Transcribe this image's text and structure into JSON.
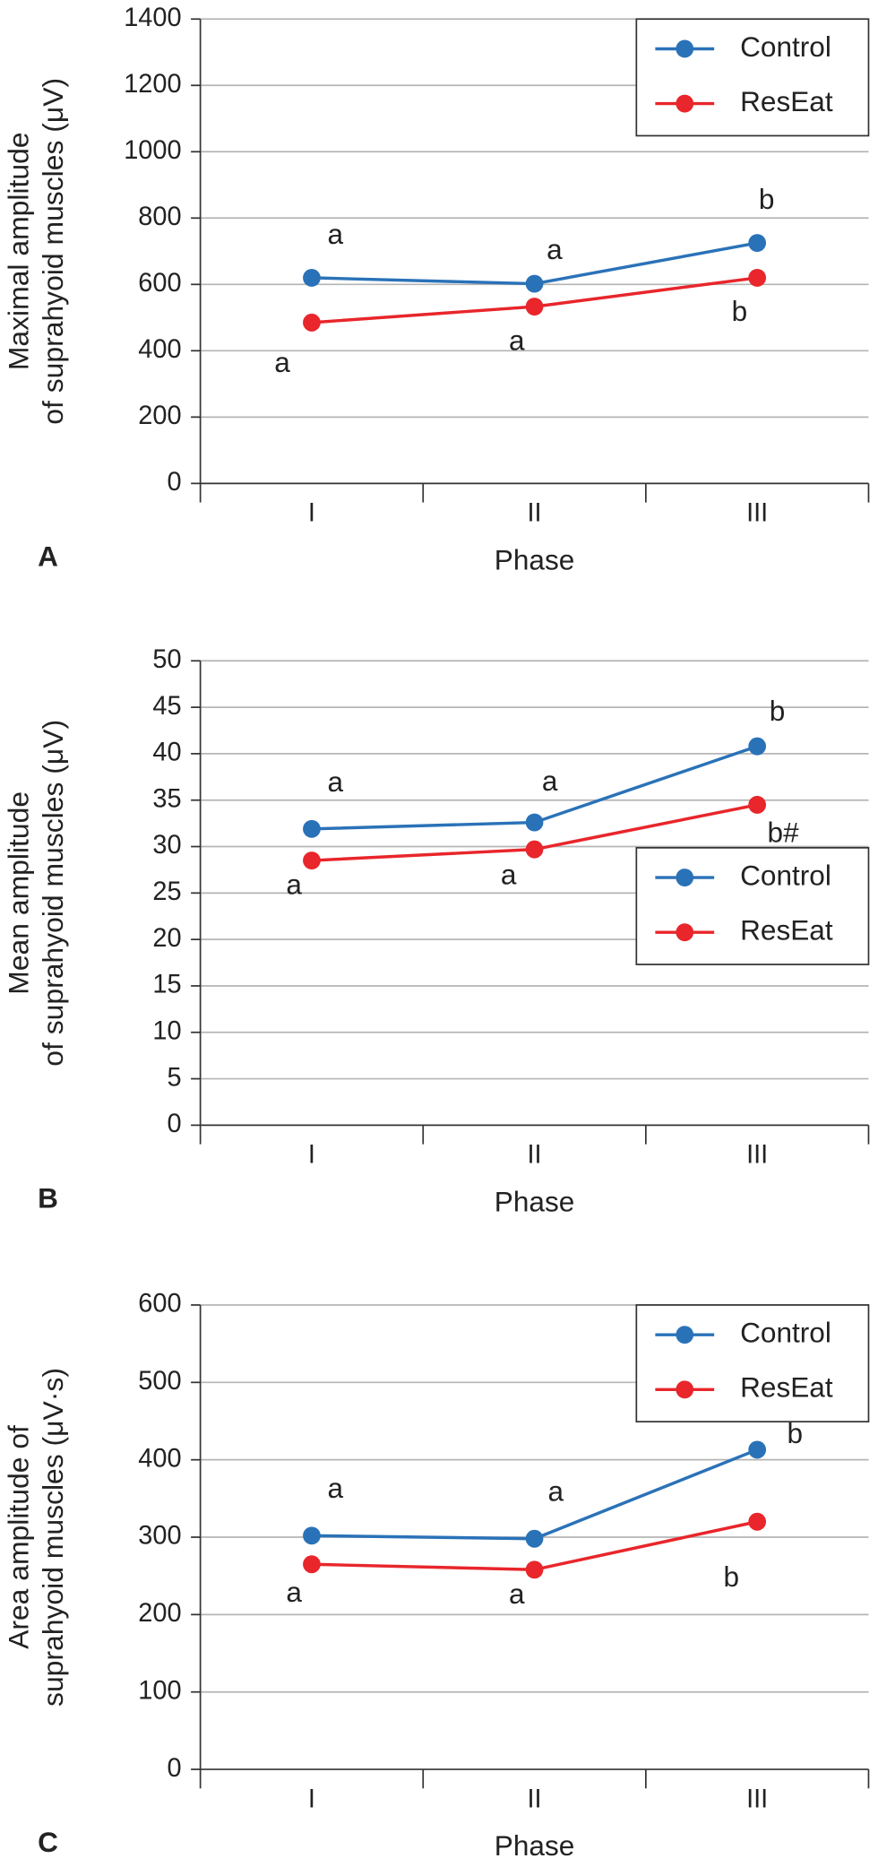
{
  "chart_data": [
    {
      "type": "line",
      "panel_label": "A",
      "x_label": "Phase",
      "y_label": [
        "Maximal amplitude",
        "of suprahyoid muscles (μV)"
      ],
      "categories": [
        "I",
        "II",
        "III"
      ],
      "ylim": [
        0,
        1400
      ],
      "yticks": [
        0,
        200,
        400,
        600,
        800,
        1000,
        1200,
        1400
      ],
      "grid": true,
      "legend": "upper right",
      "series": [
        {
          "name": "Control",
          "color": "#2a72b8",
          "values": [
            620,
            602,
            725
          ],
          "labels": [
            "a",
            "a",
            "b"
          ]
        },
        {
          "name": "ResEat",
          "color": "#e8262b",
          "values": [
            485,
            533,
            620
          ],
          "labels": [
            "a",
            "a",
            "b"
          ]
        }
      ]
    },
    {
      "type": "line",
      "panel_label": "B",
      "x_label": "Phase",
      "y_label": [
        "Mean amplitude",
        "of suprahyoid muscles (μV)"
      ],
      "categories": [
        "I",
        "II",
        "III"
      ],
      "ylim": [
        0,
        50
      ],
      "yticks": [
        0,
        5,
        10,
        15,
        20,
        25,
        30,
        35,
        40,
        45,
        50
      ],
      "grid": true,
      "legend": "lower right",
      "series": [
        {
          "name": "Control",
          "color": "#2a72b8",
          "values": [
            31.9,
            32.6,
            40.8
          ],
          "labels": [
            "a",
            "a",
            "b"
          ]
        },
        {
          "name": "ResEat",
          "color": "#e8262b",
          "values": [
            28.5,
            29.7,
            34.5
          ],
          "labels": [
            "a",
            "a",
            "b#"
          ]
        }
      ]
    },
    {
      "type": "line",
      "panel_label": "C",
      "x_label": "Phase",
      "y_label": [
        "Area amplitude of",
        "suprahyoid muscles (μV·s)"
      ],
      "categories": [
        "I",
        "II",
        "III"
      ],
      "ylim": [
        0,
        600
      ],
      "yticks": [
        0,
        100,
        200,
        300,
        400,
        500,
        600
      ],
      "grid": true,
      "legend": "upper right",
      "series": [
        {
          "name": "Control",
          "color": "#2a72b8",
          "values": [
            302,
            298,
            413
          ],
          "labels": [
            "a",
            "a",
            "b"
          ]
        },
        {
          "name": "ResEat",
          "color": "#e8262b",
          "values": [
            265,
            258,
            320
          ],
          "labels": [
            "a",
            "a",
            "b"
          ]
        }
      ]
    }
  ]
}
